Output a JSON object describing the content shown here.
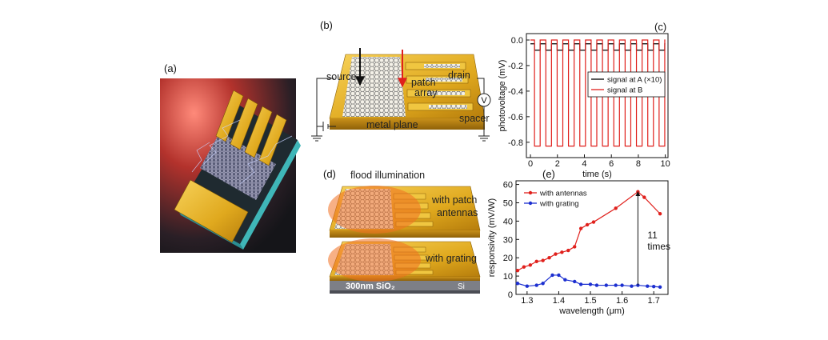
{
  "panels": {
    "a": "(a)",
    "b": "(b)",
    "c": "(c)",
    "d": "(d)",
    "e": "(e)"
  },
  "diagram_b": {
    "source": "source",
    "drain": "drain",
    "patch_array": [
      "patch",
      "array"
    ],
    "meter": "V",
    "spacer": "spacer",
    "metal_plane": "metal plane"
  },
  "diagram_d": {
    "title": "flood illumination",
    "patch": [
      "with patch",
      "antennas"
    ],
    "grating": "with grating",
    "oxide": "300nm SiO₂",
    "substrate": "Si"
  },
  "chart_data": [
    {
      "type": "line",
      "xlabel": "time (s)",
      "ylabel": "photovoltage (mV)",
      "x": [
        0,
        0.3,
        0.3,
        0.72,
        0.72,
        1.14,
        1.14,
        1.56,
        1.56,
        1.98,
        1.98,
        2.4,
        2.4,
        2.82,
        2.82,
        3.24,
        3.24,
        3.66,
        3.66,
        4.08,
        4.08,
        4.5,
        4.5,
        4.92,
        4.92,
        5.34,
        5.34,
        5.76,
        5.76,
        6.18,
        6.18,
        6.6,
        6.6,
        7.02,
        7.02,
        7.44,
        7.44,
        7.86,
        7.86,
        8.28,
        8.28,
        8.7,
        8.7,
        9.12,
        9.12,
        9.54,
        9.54,
        9.96,
        9.96,
        10
      ],
      "series": [
        {
          "name": "signal at A (×10)",
          "color": "#000000",
          "values": [
            -0.03,
            -0.03,
            -0.08,
            -0.08,
            -0.03,
            -0.03,
            -0.08,
            -0.08,
            -0.03,
            -0.03,
            -0.08,
            -0.08,
            -0.03,
            -0.03,
            -0.08,
            -0.08,
            -0.03,
            -0.03,
            -0.08,
            -0.08,
            -0.03,
            -0.03,
            -0.08,
            -0.08,
            -0.03,
            -0.03,
            -0.08,
            -0.08,
            -0.03,
            -0.03,
            -0.08,
            -0.08,
            -0.03,
            -0.03,
            -0.08,
            -0.08,
            -0.03,
            -0.03,
            -0.08,
            -0.08,
            -0.03,
            -0.03,
            -0.08,
            -0.08,
            -0.03,
            -0.03,
            -0.08,
            -0.08,
            -0.03,
            -0.03
          ]
        },
        {
          "name": "signal at B",
          "color": "#e0201c",
          "values": [
            0,
            0,
            -0.83,
            -0.83,
            0,
            0,
            -0.83,
            -0.83,
            0,
            0,
            -0.83,
            -0.83,
            0,
            0,
            -0.83,
            -0.83,
            0,
            0,
            -0.83,
            -0.83,
            0,
            0,
            -0.83,
            -0.83,
            0,
            0,
            -0.83,
            -0.83,
            0,
            0,
            -0.83,
            -0.83,
            0,
            0,
            -0.83,
            -0.83,
            0,
            0,
            -0.83,
            -0.83,
            0,
            0,
            -0.83,
            -0.83,
            0,
            0,
            -0.83,
            -0.83,
            0,
            0
          ]
        }
      ],
      "xlim": [
        -0.3,
        10.2
      ],
      "ylim": [
        -0.92,
        0.05
      ],
      "xticks": [
        0,
        2,
        4,
        6,
        8,
        10
      ],
      "yticks": [
        {
          "value": 0,
          "label": "0.0"
        },
        -0.2,
        -0.4,
        -0.6,
        -0.8
      ],
      "markers": false,
      "legend_frame": true,
      "legend": "center right"
    },
    {
      "type": "line",
      "xlabel": "wavelength (μm)",
      "ylabel": "responsivity (mV/W)",
      "series": [
        {
          "name": "with antennas",
          "color": "#e0201c",
          "x": [
            1.27,
            1.29,
            1.31,
            1.33,
            1.35,
            1.37,
            1.39,
            1.41,
            1.43,
            1.45,
            1.47,
            1.49,
            1.51,
            1.58,
            1.65,
            1.67,
            1.72
          ],
          "values": [
            13,
            15,
            16,
            18,
            18.5,
            20,
            22,
            23,
            24,
            26,
            36,
            38,
            39.5,
            47,
            56,
            53,
            44
          ]
        },
        {
          "name": "with grating",
          "color": "#1c2fd0",
          "x": [
            1.27,
            1.3,
            1.33,
            1.35,
            1.38,
            1.4,
            1.42,
            1.45,
            1.47,
            1.5,
            1.52,
            1.55,
            1.58,
            1.6,
            1.63,
            1.65,
            1.68,
            1.7,
            1.72
          ],
          "values": [
            6,
            4.5,
            5,
            6,
            10.5,
            10.5,
            8,
            7,
            5.5,
            5.5,
            5,
            5,
            5,
            5,
            4.5,
            5,
            4.5,
            4.3,
            4
          ]
        }
      ],
      "xlim": [
        1.265,
        1.745
      ],
      "ylim": [
        0,
        62
      ],
      "xticks": [
        1.3,
        1.4,
        1.5,
        1.6,
        1.7
      ],
      "yticks": [
        0,
        10,
        20,
        30,
        40,
        50,
        60
      ],
      "annotation": {
        "text": [
          "11",
          "times"
        ],
        "x": 1.65,
        "y_from": 5,
        "y_to": 56
      },
      "markers": true,
      "legend_frame": false,
      "legend": "upper left"
    }
  ]
}
